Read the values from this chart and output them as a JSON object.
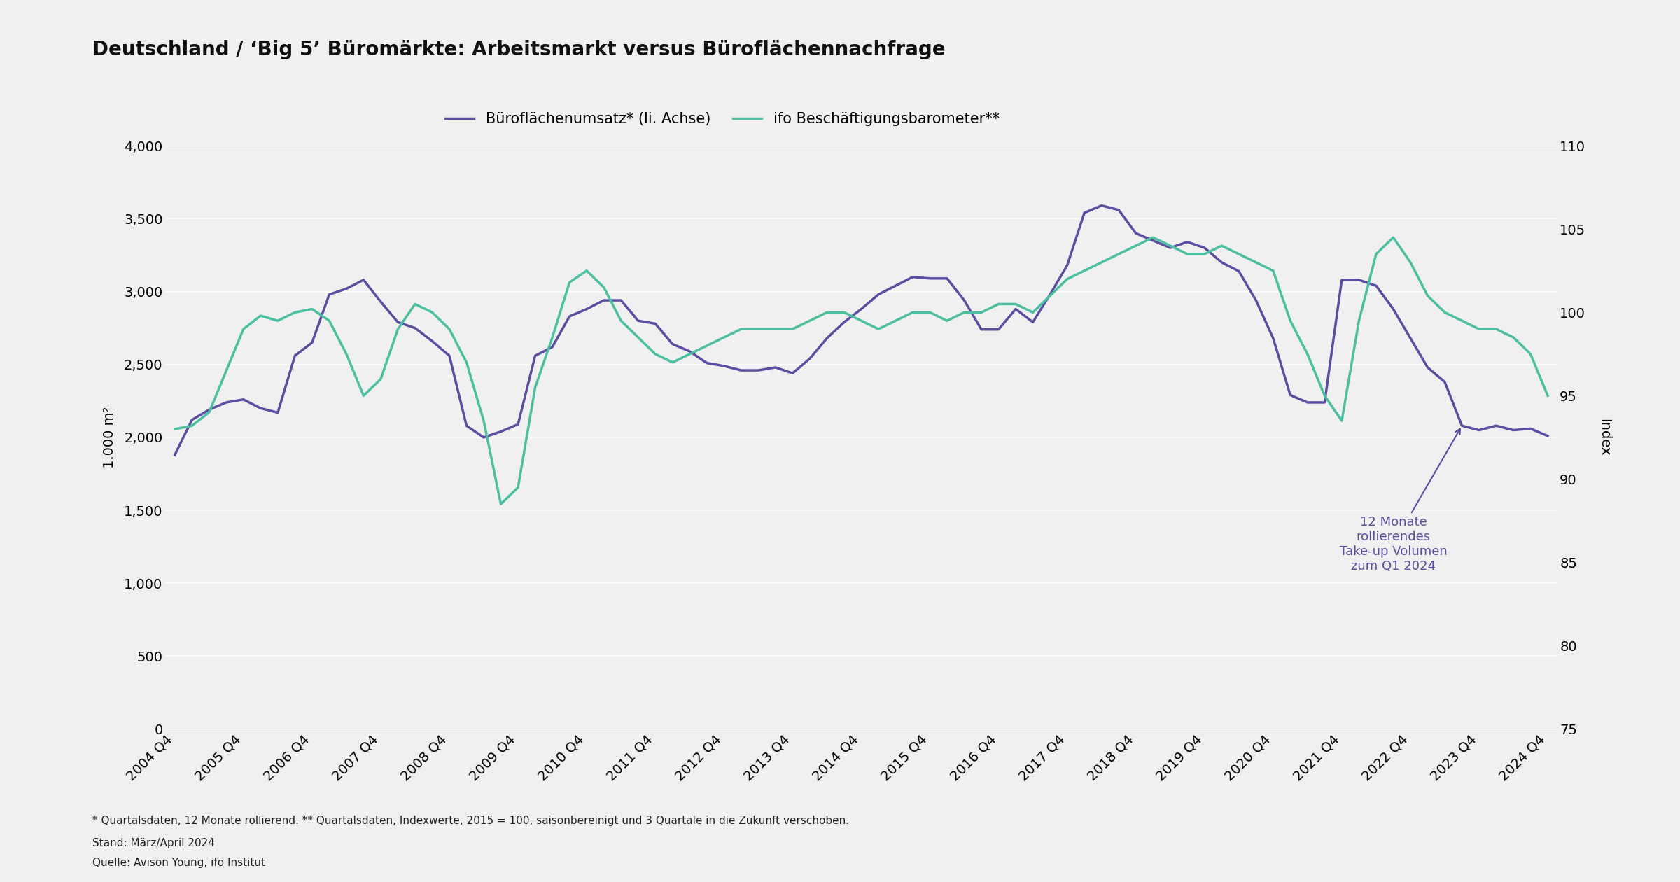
{
  "title": "Deutschland / ‘Big 5’ Büromärkte: Arbeitsmarkt versus Büroflächennachfrage",
  "legend_line1": "Büroflächenumsatz* (li. Achse)",
  "legend_line2": "ifo Beschäftigungsbarometer**",
  "ylabel_left": "1.000 m²",
  "ylabel_right": "Index",
  "footnote1": "* Quartalsdaten, 12 Monate rollierend. ** Quartalsdaten, Indexwerte, 2015 = 100, saisonbereinigt und 3 Quartale in die Zukunft verschoben.",
  "footnote2": "Stand: März/April 2024",
  "footnote3": "Quelle: Avison Young, ifo Institut",
  "annotation": "12 Monate\nrollierendes\nTake-up Volumen\nzum Q1 2024",
  "color_purple": "#5b4ea0",
  "color_green": "#4bbf9f",
  "background_color": "#f0f0f0",
  "plot_bg_color": "#ebebeb",
  "ylim_left_bottom": 0,
  "ylim_left_top": 4000,
  "ylim_right_bottom": 75,
  "ylim_right_top": 110,
  "quarters": [
    "2004 Q4",
    "2005 Q4",
    "2006 Q4",
    "2007 Q4",
    "2008 Q4",
    "2009 Q4",
    "2010 Q4",
    "2011 Q4",
    "2012 Q4",
    "2013 Q4",
    "2014 Q4",
    "2015 Q4",
    "2016 Q4",
    "2017 Q4",
    "2018 Q4",
    "2019 Q4",
    "2020 Q4",
    "2021 Q4",
    "2022 Q4",
    "2023 Q4",
    "2024 Q4"
  ],
  "xtick_positions": [
    0,
    4,
    8,
    12,
    16,
    20,
    24,
    28,
    32,
    36,
    40,
    44,
    48,
    52,
    56,
    60,
    64,
    68,
    72,
    76,
    80
  ],
  "purple_y": [
    1880,
    2120,
    2190,
    2240,
    2260,
    2200,
    2170,
    2560,
    2650,
    2980,
    3020,
    3080,
    2930,
    2790,
    2750,
    2660,
    2560,
    2080,
    2000,
    2040,
    2090,
    2560,
    2620,
    2830,
    2880,
    2940,
    2940,
    2800,
    2780,
    2640,
    2590,
    2510,
    2490,
    2460,
    2460,
    2480,
    2440,
    2540,
    2680,
    2790,
    2880,
    2980,
    3040,
    3100,
    3090,
    3090,
    2940,
    2740,
    2740,
    2880,
    2790,
    2980,
    3180,
    3540,
    3590,
    3560,
    3400,
    3350,
    3300,
    3340,
    3300,
    3200,
    3140,
    2940,
    2680,
    2290,
    2240,
    2240,
    3080,
    3080,
    3040,
    2880,
    2680,
    2480,
    2380,
    2080,
    2050,
    2080,
    2050,
    2060,
    2010
  ],
  "green_y": [
    93.0,
    93.2,
    94.0,
    96.5,
    99.0,
    99.8,
    99.5,
    100.0,
    100.2,
    99.5,
    97.5,
    95.0,
    96.0,
    99.0,
    100.5,
    100.0,
    99.0,
    97.0,
    93.5,
    88.5,
    89.5,
    95.5,
    98.5,
    101.8,
    102.5,
    101.5,
    99.5,
    98.5,
    97.5,
    97.0,
    97.5,
    98.0,
    98.5,
    99.0,
    99.0,
    99.0,
    99.0,
    99.5,
    100.0,
    100.0,
    99.5,
    99.0,
    99.5,
    100.0,
    100.0,
    99.5,
    100.0,
    100.0,
    100.5,
    100.5,
    100.0,
    101.0,
    102.0,
    102.5,
    103.0,
    103.5,
    104.0,
    104.5,
    104.0,
    103.5,
    103.5,
    104.0,
    103.5,
    103.0,
    102.5,
    99.5,
    97.5,
    95.0,
    93.5,
    99.5,
    103.5,
    104.5,
    103.0,
    101.0,
    100.0,
    99.5,
    99.0,
    99.0,
    98.5,
    97.5,
    95.0
  ]
}
